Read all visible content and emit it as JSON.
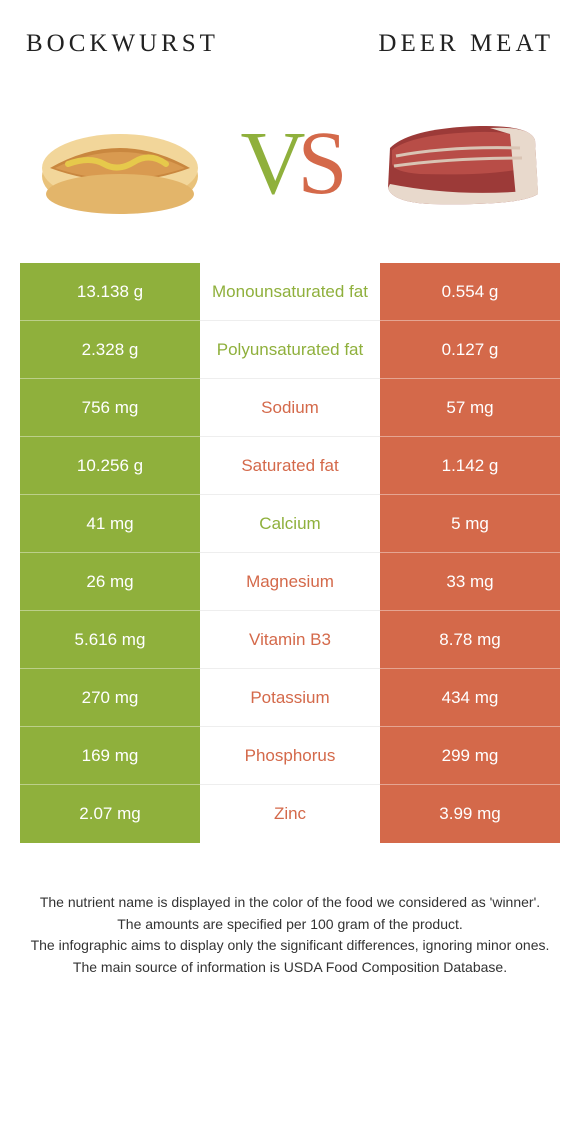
{
  "colors": {
    "left_bg": "#8fb03c",
    "right_bg": "#d4694a",
    "mid_bg": "#ffffff",
    "text_white": "#ffffff",
    "page_bg": "#ffffff"
  },
  "header": {
    "left": "BOCKWURST",
    "right": "DEER MEAT"
  },
  "vs": {
    "v": "V",
    "s": "S"
  },
  "rows": [
    {
      "left": "13.138 g",
      "mid": "Monounsaturated fat",
      "right": "0.554 g",
      "winner": "left"
    },
    {
      "left": "2.328 g",
      "mid": "Polyunsaturated fat",
      "right": "0.127 g",
      "winner": "left"
    },
    {
      "left": "756 mg",
      "mid": "Sodium",
      "right": "57 mg",
      "winner": "right"
    },
    {
      "left": "10.256 g",
      "mid": "Saturated fat",
      "right": "1.142 g",
      "winner": "right"
    },
    {
      "left": "41 mg",
      "mid": "Calcium",
      "right": "5 mg",
      "winner": "left"
    },
    {
      "left": "26 mg",
      "mid": "Magnesium",
      "right": "33 mg",
      "winner": "right"
    },
    {
      "left": "5.616 mg",
      "mid": "Vitamin B3",
      "right": "8.78 mg",
      "winner": "right"
    },
    {
      "left": "270 mg",
      "mid": "Potassium",
      "right": "434 mg",
      "winner": "right"
    },
    {
      "left": "169 mg",
      "mid": "Phosphorus",
      "right": "299 mg",
      "winner": "right"
    },
    {
      "left": "2.07 mg",
      "mid": "Zinc",
      "right": "3.99 mg",
      "winner": "right"
    }
  ],
  "caption": {
    "l1": "The nutrient name is displayed in the color of the food we considered as 'winner'.",
    "l2": "The amounts are specified per 100 gram of the product.",
    "l3": "The infographic aims to display only the significant differences, ignoring minor ones.",
    "l4": "The main source of information is USDA Food Composition Database."
  }
}
